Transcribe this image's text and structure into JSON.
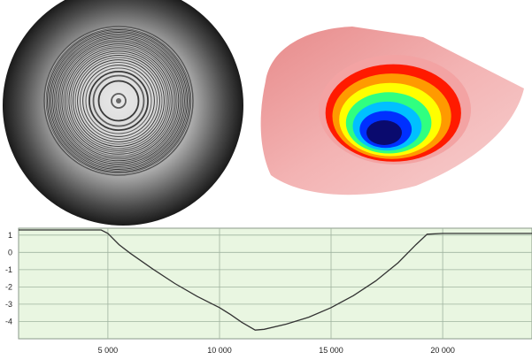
{
  "panels": {
    "interferogram": {
      "icon": "interferogram-fringe-rings"
    },
    "surface_3d": {
      "icon": "3d-height-map-crater",
      "colormap": [
        "#0a0a6e",
        "#0030ff",
        "#00c0ff",
        "#30ff80",
        "#ffff00",
        "#ff9a00",
        "#ff1a00",
        "#f3a3a3"
      ]
    }
  },
  "chart_data": {
    "type": "line",
    "title": "",
    "xlabel": "",
    "ylabel": "",
    "xlim": [
      1000,
      24000
    ],
    "ylim": [
      -5,
      1.4
    ],
    "grid": true,
    "x_ticks": [
      5000,
      10000,
      15000,
      20000
    ],
    "x_tick_labels": [
      "5 000",
      "10 000",
      "15 000",
      "20 000"
    ],
    "y_ticks": [
      1,
      0,
      -1,
      -2,
      -3,
      -4
    ],
    "y_tick_labels": [
      "1",
      "0",
      "-1",
      "-2",
      "-3",
      "-4"
    ],
    "series": [
      {
        "values_xy": [
          [
            1000,
            1.3
          ],
          [
            4700,
            1.3
          ],
          [
            5000,
            1.1
          ],
          [
            5500,
            0.45
          ],
          [
            6000,
            -0.05
          ],
          [
            7000,
            -0.95
          ],
          [
            8000,
            -1.8
          ],
          [
            9000,
            -2.55
          ],
          [
            10000,
            -3.2
          ],
          [
            10500,
            -3.6
          ],
          [
            11000,
            -4.05
          ],
          [
            11600,
            -4.5
          ],
          [
            12000,
            -4.45
          ],
          [
            13000,
            -4.15
          ],
          [
            14000,
            -3.75
          ],
          [
            15000,
            -3.2
          ],
          [
            16000,
            -2.5
          ],
          [
            17000,
            -1.65
          ],
          [
            18000,
            -0.6
          ],
          [
            18800,
            0.45
          ],
          [
            19300,
            1.05
          ],
          [
            20000,
            1.1
          ],
          [
            24000,
            1.1
          ]
        ],
        "color": "#333333"
      }
    ]
  }
}
